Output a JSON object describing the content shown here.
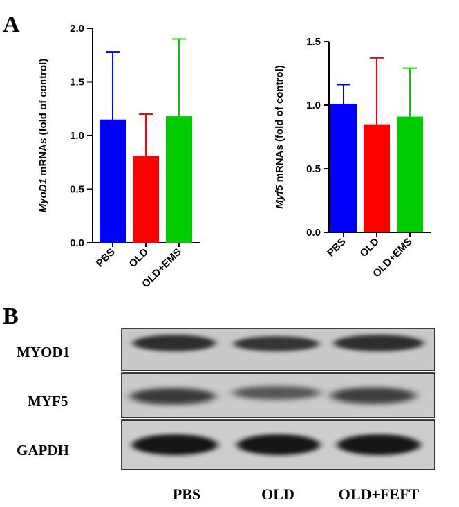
{
  "panels": {
    "a": "A",
    "b": "B"
  },
  "chart_data": [
    {
      "type": "bar",
      "categories": [
        "PBS",
        "OLD",
        "OLD+EMS"
      ],
      "values": [
        1.15,
        0.81,
        1.18
      ],
      "errors": [
        0.63,
        0.39,
        0.72
      ],
      "colors": [
        "#0000ff",
        "#ff0000",
        "#00cc00"
      ],
      "ylabel_gene": "MyoD1",
      "ylabel_rest": " mRNAs (fold of control)",
      "ylim": [
        0,
        2.0
      ],
      "yticks": [
        "0.0",
        "0.5",
        "1.0",
        "1.5",
        "2.0"
      ]
    },
    {
      "type": "bar",
      "categories": [
        "PBS",
        "OLD",
        "OLD+EMS"
      ],
      "values": [
        1.01,
        0.85,
        0.91
      ],
      "errors": [
        0.15,
        0.52,
        0.38
      ],
      "colors": [
        "#0000ff",
        "#ff0000",
        "#00cc00"
      ],
      "ylabel_gene": "Myf5",
      "ylabel_rest": " mRNAs (fold of control)",
      "ylim": [
        0,
        1.5
      ],
      "yticks": [
        "0.0",
        "0.5",
        "1.0",
        "1.5"
      ]
    }
  ],
  "western_blot": {
    "rows": [
      "MYOD1",
      "MYF5",
      "GAPDH"
    ],
    "lanes": [
      "PBS",
      "OLD",
      "OLD+FEFT"
    ]
  }
}
